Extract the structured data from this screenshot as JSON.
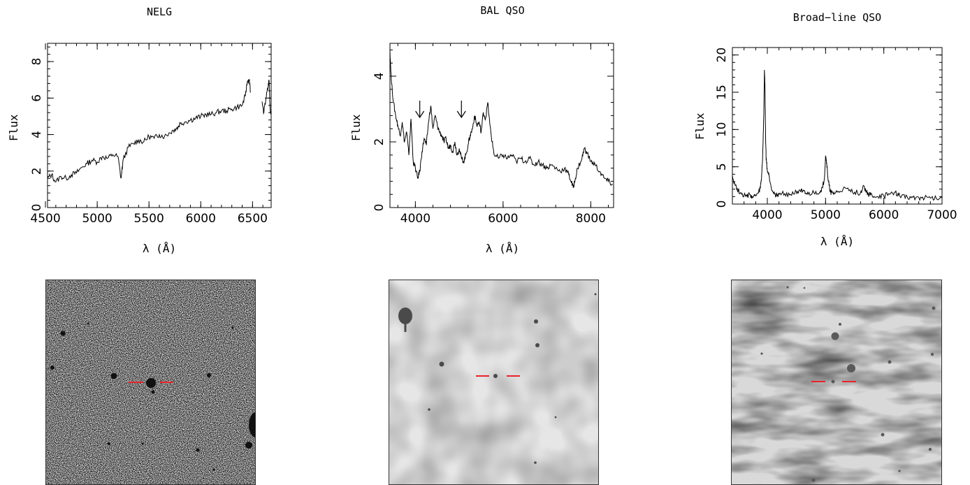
{
  "chart_data": [
    {
      "type": "line",
      "title": "NELG",
      "xlabel": "λ (Å)",
      "ylabel": "Flux",
      "xlim": [
        4520,
        6680
      ],
      "ylim": [
        0,
        9
      ],
      "xticks": [
        4500,
        5000,
        5500,
        6000,
        6500
      ],
      "yticks": [
        0,
        2,
        4,
        6,
        8
      ],
      "annotations": [],
      "series": [
        {
          "x": [
            4520,
            4560,
            4600,
            4650,
            4700,
            4750,
            4800,
            4850,
            4900,
            4950,
            5000,
            5050,
            5100,
            5150,
            5200,
            5230,
            5250,
            5300,
            5350,
            5400,
            5450,
            5500,
            5550,
            5600,
            5650,
            5700,
            5750,
            5780,
            5800,
            5850,
            5900,
            5950,
            6000,
            6050,
            6100,
            6150,
            6200,
            6250,
            6300,
            6350,
            6400,
            6430,
            6450,
            6470,
            6480
          ],
          "y": [
            1.6,
            1.8,
            1.4,
            1.7,
            1.6,
            1.8,
            1.9,
            2.2,
            2.4,
            2.6,
            2.5,
            2.8,
            2.7,
            2.9,
            2.8,
            1.6,
            2.6,
            3.3,
            3.5,
            3.7,
            3.6,
            3.9,
            3.8,
            4.0,
            3.9,
            4.1,
            4.3,
            4.4,
            4.6,
            4.7,
            4.8,
            4.9,
            5.0,
            5.1,
            5.1,
            5.2,
            5.3,
            5.3,
            5.4,
            5.5,
            5.6,
            6.1,
            6.9,
            7.0,
            6.3
          ]
        },
        {
          "x": [
            6590,
            6610,
            6630,
            6650,
            6660,
            6670,
            6680
          ],
          "y": [
            5.8,
            5.2,
            6.0,
            6.6,
            7.0,
            5.4,
            5.1
          ]
        }
      ]
    },
    {
      "type": "line",
      "title": "BAL QSO",
      "xlabel": "λ (Å)",
      "ylabel": "Flux",
      "xlim": [
        3420,
        8520
      ],
      "ylim": [
        0,
        5
      ],
      "xticks": [
        4000,
        6000,
        8000
      ],
      "yticks": [
        0,
        2,
        4
      ],
      "annotations": [],
      "arrows_at_x": [
        4100,
        5050
      ],
      "series": [
        {
          "x": [
            3420,
            3450,
            3500,
            3550,
            3600,
            3650,
            3700,
            3750,
            3800,
            3850,
            3900,
            3950,
            4000,
            4050,
            4100,
            4150,
            4200,
            4250,
            4300,
            4350,
            4400,
            4450,
            4500,
            4550,
            4600,
            4650,
            4700,
            4750,
            4800,
            4850,
            4900,
            4950,
            5000,
            5050,
            5100,
            5150,
            5200,
            5250,
            5300,
            5350,
            5400,
            5450,
            5500,
            5550,
            5600,
            5650,
            5700,
            5750,
            5800,
            5900,
            6000,
            6100,
            6200,
            6300,
            6400,
            6500,
            6600,
            6700,
            6800,
            6900,
            7000,
            7100,
            7200,
            7300,
            7400,
            7500,
            7550,
            7600,
            7650,
            7700,
            7800,
            7850,
            7900,
            8000,
            8100,
            8200,
            8300,
            8400,
            8500
          ],
          "y": [
            4.8,
            3.9,
            3.2,
            2.8,
            2.5,
            2.2,
            2.6,
            2.0,
            2.3,
            1.6,
            2.7,
            1.4,
            1.2,
            0.9,
            1.1,
            1.7,
            2.1,
            1.9,
            2.6,
            3.1,
            2.4,
            2.8,
            2.5,
            2.3,
            2.2,
            2.0,
            2.1,
            1.8,
            1.9,
            1.7,
            2.0,
            1.6,
            1.8,
            1.5,
            1.4,
            1.6,
            1.9,
            2.2,
            2.4,
            2.8,
            2.5,
            2.6,
            2.3,
            2.9,
            2.7,
            3.2,
            2.5,
            2.0,
            1.6,
            1.5,
            1.6,
            1.5,
            1.6,
            1.4,
            1.5,
            1.4,
            1.5,
            1.3,
            1.4,
            1.3,
            1.2,
            1.3,
            1.2,
            1.1,
            1.2,
            1.0,
            0.8,
            0.6,
            0.9,
            1.2,
            1.5,
            1.8,
            1.7,
            1.4,
            1.3,
            1.1,
            0.9,
            0.8,
            0.7
          ]
        }
      ]
    },
    {
      "type": "line",
      "title": "Broad−line QSO",
      "xlabel": "λ (Å)",
      "ylabel": "Flux",
      "xlim": [
        3400,
        7000
      ],
      "ylim": [
        0,
        21
      ],
      "xticks": [
        4000,
        5000,
        6000,
        7000
      ],
      "yticks": [
        0,
        5,
        10,
        15,
        20
      ],
      "annotations": [],
      "series": [
        {
          "x": [
            3400,
            3450,
            3500,
            3550,
            3600,
            3650,
            3700,
            3750,
            3800,
            3850,
            3880,
            3900,
            3920,
            3940,
            3950,
            3960,
            3970,
            3980,
            4000,
            4030,
            4060,
            4100,
            4150,
            4200,
            4300,
            4400,
            4500,
            4550,
            4600,
            4650,
            4700,
            4800,
            4900,
            4950,
            4980,
            5000,
            5020,
            5040,
            5060,
            5080,
            5100,
            5150,
            5200,
            5300,
            5400,
            5500,
            5600,
            5650,
            5700,
            5750,
            5800,
            5900,
            6000,
            6100,
            6200,
            6250,
            6300,
            6400,
            6500,
            6600,
            6700,
            6800,
            6900,
            7000
          ],
          "y": [
            3.8,
            2.5,
            1.8,
            1.5,
            1.2,
            1.0,
            1.3,
            0.9,
            1.1,
            1.5,
            2.2,
            3.5,
            6.5,
            12.0,
            18.0,
            15.5,
            9.0,
            6.0,
            4.5,
            3.8,
            2.5,
            1.6,
            1.2,
            1.3,
            1.4,
            1.3,
            1.6,
            1.9,
            1.6,
            1.4,
            1.3,
            1.5,
            1.6,
            2.2,
            3.5,
            6.5,
            5.5,
            3.5,
            2.5,
            1.8,
            1.5,
            1.4,
            1.6,
            2.0,
            1.8,
            1.6,
            1.5,
            2.5,
            1.6,
            1.3,
            1.1,
            1.0,
            1.1,
            1.3,
            1.6,
            1.2,
            1.0,
            1.0,
            0.9,
            0.9,
            0.8,
            0.8,
            0.8,
            0.8
          ]
        }
      ]
    }
  ]
}
